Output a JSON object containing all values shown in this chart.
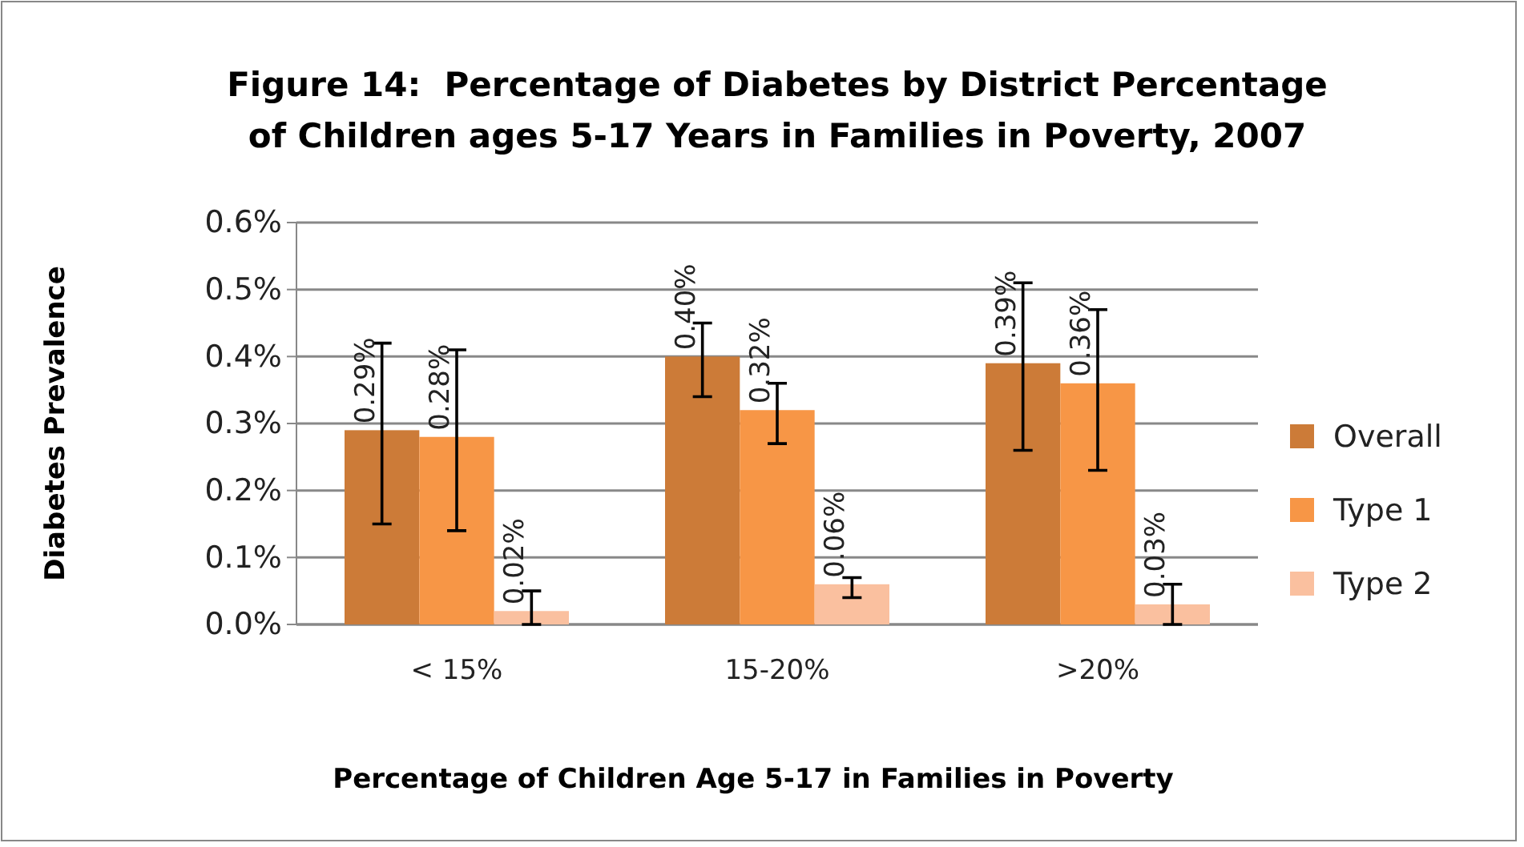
{
  "chart_data": {
    "type": "bar",
    "title": "Figure 14:  Percentage of Diabetes by District Percentage of Children ages 5-17 Years in Families in Poverty, 2007",
    "xlabel": "Percentage of Children Age 5-17 in Families  in Poverty",
    "ylabel": "Diabetes Prevalence",
    "categories": [
      "< 15%",
      "15-20%",
      ">20%"
    ],
    "series": [
      {
        "name": "Overall",
        "color": "#cc7b38",
        "values": [
          0.29,
          0.4,
          0.39
        ],
        "value_labels": [
          "0.29%",
          "0.40%",
          "0.39%"
        ],
        "errors": [
          [
            0.15,
            0.42
          ],
          [
            0.34,
            0.45
          ],
          [
            0.26,
            0.51
          ]
        ]
      },
      {
        "name": "Type 1",
        "color": "#f79646",
        "values": [
          0.28,
          0.32,
          0.36
        ],
        "value_labels": [
          "0.28%",
          "0.32%",
          "0.36%"
        ],
        "errors": [
          [
            0.14,
            0.41
          ],
          [
            0.27,
            0.36
          ],
          [
            0.23,
            0.47
          ]
        ]
      },
      {
        "name": "Type 2",
        "color": "#fac09f",
        "values": [
          0.02,
          0.06,
          0.03
        ],
        "value_labels": [
          "0.02%",
          "0.06%",
          "0.03%"
        ],
        "errors": [
          [
            0,
            0.05
          ],
          [
            0.04,
            0.07
          ],
          [
            0,
            0.06
          ]
        ]
      }
    ],
    "ylim": [
      0,
      0.6
    ],
    "yticks": [
      {
        "value": 0,
        "label": "0.0%"
      },
      {
        "value": 0.1,
        "label": "0.1%"
      },
      {
        "value": 0.2,
        "label": "0.2%"
      },
      {
        "value": 0.3,
        "label": "0.3%"
      },
      {
        "value": 0.4,
        "label": "0.4%"
      },
      {
        "value": 0.5,
        "label": "0.5%"
      },
      {
        "value": 0.6,
        "label": "0.6%"
      }
    ],
    "grid": "y",
    "legend": "right"
  }
}
